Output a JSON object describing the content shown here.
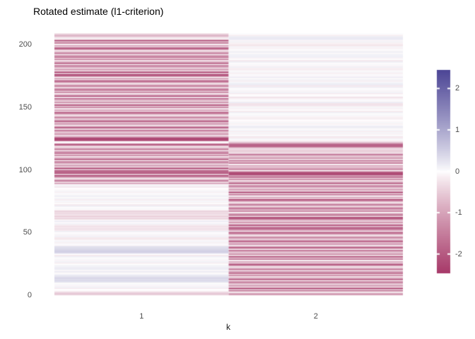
{
  "title": "Rotated estimate (l1-criterion)",
  "x_axis": {
    "label": "k",
    "ticks": [
      "1",
      "2"
    ]
  },
  "y_axis": {
    "ticks": [
      "0",
      "50",
      "100",
      "150",
      "200"
    ]
  },
  "legend": {
    "ticks": [
      "2",
      "1",
      "0",
      "-1",
      "-2"
    ],
    "low_color": "#A73A69",
    "mid_color": "#FFFFFF",
    "high_color": "#4D4696"
  },
  "chart_data": {
    "type": "heatmap",
    "title": "Rotated estimate (l1-criterion)",
    "xlabel": "k",
    "ylabel": "",
    "x_categories": [
      "1",
      "2"
    ],
    "n_rows": 207,
    "ylim": [
      0,
      207
    ],
    "legend_position": "right",
    "grid": false,
    "colorbar": {
      "limits": [
        -2.45,
        2.45
      ],
      "ticks": [
        2,
        1,
        0,
        -1,
        -2
      ]
    },
    "series": [
      {
        "name": "k=1",
        "values": [
          -0.5,
          -0.6,
          -0.35,
          -0.05,
          0,
          -0.18,
          0.12,
          -0.08,
          0.05,
          -0.02,
          0.3,
          0.42,
          0.38,
          0.45,
          0.3,
          0.25,
          0.1,
          -0.04,
          0.18,
          -0.06,
          0.15,
          0.2,
          0.12,
          0.1,
          0,
          -0.18,
          0.12,
          -0.08,
          0.05,
          -0.02,
          0.15,
          -0.22,
          0.02,
          0.4,
          0.55,
          0.5,
          0.45,
          0.35,
          0.3,
          -0.06,
          0.04,
          -0.12,
          0.08,
          -0.05,
          -0.25,
          -0.2,
          0.12,
          -0.08,
          0.05,
          -0.02,
          0.15,
          -0.22,
          -0.28,
          -0.22,
          -0.3,
          -0.18,
          0.1,
          -0.04,
          0.18,
          -0.06,
          -0.45,
          -0.3,
          -0.5,
          -0.25,
          -0.4,
          -0.35,
          -0.45,
          -0.08,
          0.05,
          -0.02,
          0.15,
          -0.22,
          0.02,
          -0.1,
          0.07,
          -0.15,
          0.1,
          -0.04,
          0.18,
          -0.06,
          0.04,
          -0.12,
          0.08,
          -0.05,
          0,
          -0.18,
          0.12,
          -0.08,
          -1.1,
          -0.4,
          -1.7,
          -0.8,
          -0.2,
          -1.3,
          -2.2,
          -0.6,
          -2.0,
          -2.2,
          -1.9,
          -0.75,
          -2.35,
          -0.35,
          -1.25,
          -0.55,
          -0.9,
          -1.8,
          -0.3,
          -2.05,
          -1.05,
          -0.15,
          -1.45,
          -0.65,
          -1.9,
          -1.1,
          -0.4,
          -1.7,
          -0.8,
          -0.2,
          -1.3,
          -2.2,
          -0.05,
          -0.1,
          -2.3,
          -2.4,
          -2.2,
          -0.9,
          -0.35,
          -1.25,
          -0.55,
          -0.9,
          -1.8,
          -0.3,
          -2.05,
          -1.05,
          -0.15,
          -1.45,
          -0.65,
          -1.9,
          -1.1,
          -0.4,
          -1.7,
          -0.8,
          -0.2,
          -1.3,
          -2.2,
          -0.6,
          -1.0,
          -0.1,
          -1.5,
          -0.75,
          -2.35,
          -0.35,
          -1.25,
          -0.55,
          -0.9,
          -1.8,
          -0.3,
          -2.05,
          -1.05,
          -0.15,
          -1.45,
          -0.65,
          -1.9,
          -1.1,
          -0.4,
          -1.7,
          -0.8,
          -0.2,
          -1.3,
          -2.2,
          -0.6,
          -1.0,
          -0.1,
          -2.2,
          -2.3,
          -0.75,
          -2.35,
          -0.35,
          -1.25,
          -0.55,
          -0.9,
          -1.8,
          -0.3,
          -2.05,
          -1.05,
          -0.15,
          -1.45,
          -0.65,
          -1.9,
          -1.1,
          -0.4,
          -1.7,
          -0.8,
          -0.2,
          -1.3,
          -2.2,
          -0.6,
          -1.0,
          -0.1,
          -1.5,
          -0.75,
          -2.35,
          -0.35,
          -0.1,
          -0.55,
          -0.9,
          -0.5
        ]
      },
      {
        "name": "k=2",
        "values": [
          -1.2,
          -1.0,
          -0.1,
          -1.5,
          -0.75,
          -2.35,
          -0.35,
          -1.25,
          -0.55,
          -0.9,
          -1.8,
          -0.3,
          -2.05,
          -1.05,
          -0.15,
          -1.45,
          -0.65,
          -1.9,
          -1.1,
          -0.4,
          -1.7,
          -0.8,
          -0.2,
          -1.3,
          -2.2,
          -0.6,
          -1.0,
          -0.1,
          -1.5,
          -0.75,
          -2.35,
          -0.35,
          -1.25,
          -0.55,
          -0.9,
          -1.8,
          -0.3,
          -2.05,
          -1.05,
          -0.15,
          -1.45,
          -0.65,
          -1.9,
          -1.1,
          -0.4,
          -1.7,
          -0.8,
          -0.2,
          -1.3,
          -2.2,
          -0.6,
          -1.0,
          -1.9,
          -2.0,
          -0.75,
          -2.35,
          -0.35,
          -1.25,
          -0.55,
          -0.9,
          -2.1,
          -2.2,
          -0.3,
          -2.05,
          -1.05,
          -0.15,
          -1.45,
          -0.65,
          -1.9,
          -1.1,
          -0.4,
          -1.7,
          -0.8,
          -0.2,
          -1.3,
          -2.2,
          -0.6,
          -1.0,
          -0.1,
          -1.5,
          -0.75,
          -2.35,
          -0.35,
          -1.25,
          -0.55,
          -0.9,
          -1.8,
          -0.3,
          -2.05,
          -1.05,
          -0.15,
          -1.45,
          -0.65,
          -1.9,
          -1.1,
          -2.3,
          -2.45,
          -2.2,
          -0.2,
          -1.3,
          -1.0,
          -0.6,
          -1.0,
          -0.1,
          -1.5,
          -0.75,
          -1.6,
          -0.35,
          -1.25,
          -0.55,
          -0.9,
          -1.8,
          -0.3,
          -0.45,
          -0.5,
          -0.35,
          -0.55,
          -1.9,
          -2.0,
          -1.8,
          -1.0,
          -0.3,
          -0.08,
          0.05,
          -0.2,
          -0.22,
          0.02,
          -0.1,
          0.07,
          -0.15,
          0.1,
          -0.04,
          0.15,
          0.18,
          0.04,
          -0.12,
          0.08,
          -0.05,
          0,
          -0.18,
          -0.15,
          -0.08,
          0.05,
          -0.02,
          0.15,
          -0.22,
          0.02,
          -0.1,
          0.07,
          -0.15,
          -0.3,
          -0.25,
          0.18,
          -0.06,
          0.04,
          -0.12,
          -0.28,
          -0.05,
          0,
          -0.18,
          0.12,
          -0.08,
          0.05,
          -0.02,
          0.15,
          -0.22,
          0.18,
          0.15,
          0.07,
          -0.15,
          0.1,
          -0.04,
          0.18,
          -0.06,
          0.04,
          -0.12,
          0.08,
          -0.05,
          -0.18,
          -0.15,
          0.12,
          -0.08,
          0.05,
          -0.02,
          0.15,
          -0.22,
          0.02,
          -0.1,
          0.16,
          0.12,
          0.1,
          -0.04,
          0.18,
          -0.06,
          0.04,
          -0.12,
          0.08,
          -0.25,
          -0.2,
          -0.1,
          0.12,
          -0.08,
          0.2,
          0.22,
          0.15,
          -0.15,
          0.02
        ]
      }
    ]
  }
}
